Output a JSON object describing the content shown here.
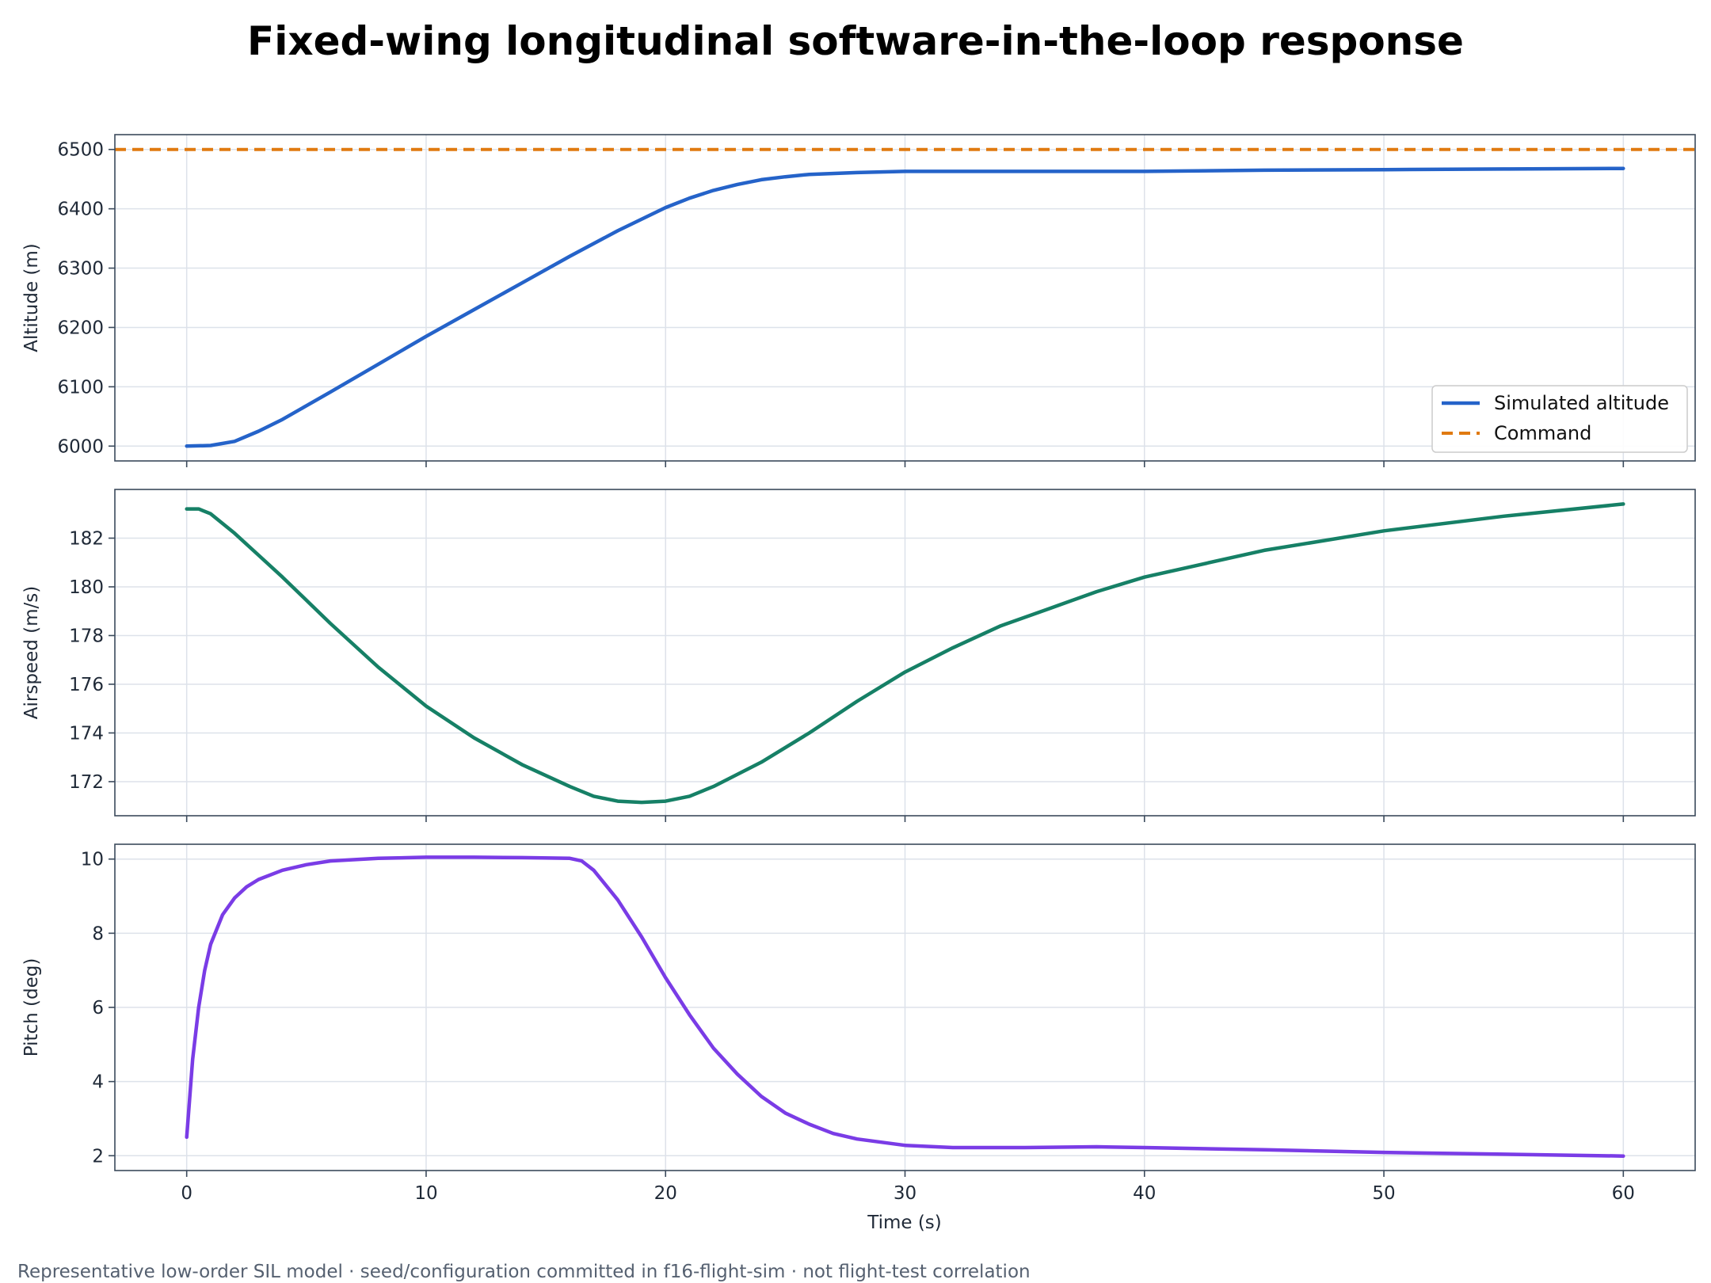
{
  "chart_data": [
    {
      "type": "line",
      "title": "Fixed-wing longitudinal software-in-the-loop response",
      "ylabel": "Altitude (m)",
      "xlim": [
        -3,
        63
      ],
      "ylim": [
        5975,
        6525
      ],
      "xticks": [
        0,
        10,
        20,
        30,
        40,
        50,
        60
      ],
      "yticks": [
        6000,
        6100,
        6200,
        6300,
        6400,
        6500
      ],
      "grid": true,
      "legend_position": "lower-right",
      "series": [
        {
          "name": "Simulated altitude",
          "color": "#2563c9",
          "style": "solid",
          "x": [
            0,
            1,
            2,
            3,
            4,
            5,
            6,
            8,
            10,
            12,
            14,
            16,
            18,
            20,
            21,
            22,
            23,
            24,
            25,
            26,
            28,
            30,
            35,
            40,
            45,
            50,
            55,
            60
          ],
          "y": [
            6000,
            6001,
            6008,
            6025,
            6045,
            6068,
            6091,
            6138,
            6185,
            6230,
            6275,
            6320,
            6363,
            6402,
            6418,
            6431,
            6441,
            6449,
            6454,
            6458,
            6461,
            6463,
            6463,
            6463,
            6465,
            6466,
            6467,
            6468
          ]
        },
        {
          "name": "Command",
          "color": "#e07a10",
          "style": "dashed",
          "x": [
            -3,
            63
          ],
          "y": [
            6500,
            6500
          ]
        }
      ]
    },
    {
      "type": "line",
      "ylabel": "Airspeed (m/s)",
      "xlim": [
        -3,
        63
      ],
      "ylim": [
        170.6,
        184.0
      ],
      "xticks": [
        0,
        10,
        20,
        30,
        40,
        50,
        60
      ],
      "yticks": [
        172,
        174,
        176,
        178,
        180,
        182
      ],
      "grid": true,
      "series": [
        {
          "color": "#168066",
          "style": "solid",
          "x": [
            0,
            0.5,
            1,
            2,
            3,
            4,
            6,
            8,
            10,
            12,
            14,
            16,
            17,
            18,
            19,
            20,
            21,
            22,
            24,
            26,
            28,
            30,
            32,
            34,
            36,
            38,
            40,
            45,
            50,
            55,
            60
          ],
          "y": [
            183.2,
            183.2,
            183.0,
            182.2,
            181.3,
            180.4,
            178.5,
            176.7,
            175.1,
            173.8,
            172.7,
            171.8,
            171.4,
            171.2,
            171.15,
            171.2,
            171.4,
            171.8,
            172.8,
            174.0,
            175.3,
            176.5,
            177.5,
            178.4,
            179.1,
            179.8,
            180.4,
            181.5,
            182.3,
            182.9,
            183.4
          ]
        }
      ]
    },
    {
      "type": "line",
      "ylabel": "Pitch (deg)",
      "xlabel": "Time (s)",
      "xlim": [
        -3,
        63
      ],
      "ylim": [
        1.6,
        10.4
      ],
      "xticks": [
        0,
        10,
        20,
        30,
        40,
        50,
        60
      ],
      "yticks": [
        2,
        4,
        6,
        8,
        10
      ],
      "grid": true,
      "series": [
        {
          "color": "#7a3ce6",
          "style": "solid",
          "x": [
            0,
            0.25,
            0.5,
            0.75,
            1,
            1.5,
            2,
            2.5,
            3,
            4,
            5,
            6,
            8,
            10,
            12,
            14,
            16,
            16.5,
            17,
            18,
            19,
            20,
            21,
            22,
            23,
            24,
            25,
            26,
            27,
            28,
            30,
            32,
            35,
            38,
            40,
            45,
            50,
            55,
            60
          ],
          "y": [
            2.5,
            4.6,
            6.0,
            7.0,
            7.7,
            8.5,
            8.95,
            9.25,
            9.45,
            9.7,
            9.85,
            9.95,
            10.02,
            10.05,
            10.05,
            10.04,
            10.02,
            9.95,
            9.7,
            8.9,
            7.9,
            6.8,
            5.8,
            4.9,
            4.2,
            3.6,
            3.15,
            2.85,
            2.6,
            2.45,
            2.28,
            2.22,
            2.22,
            2.24,
            2.22,
            2.16,
            2.09,
            2.04,
            1.99
          ]
        }
      ]
    }
  ],
  "footer": "Representative low-order SIL model · seed/configuration committed in f16-flight-sim · not flight-test correlation"
}
